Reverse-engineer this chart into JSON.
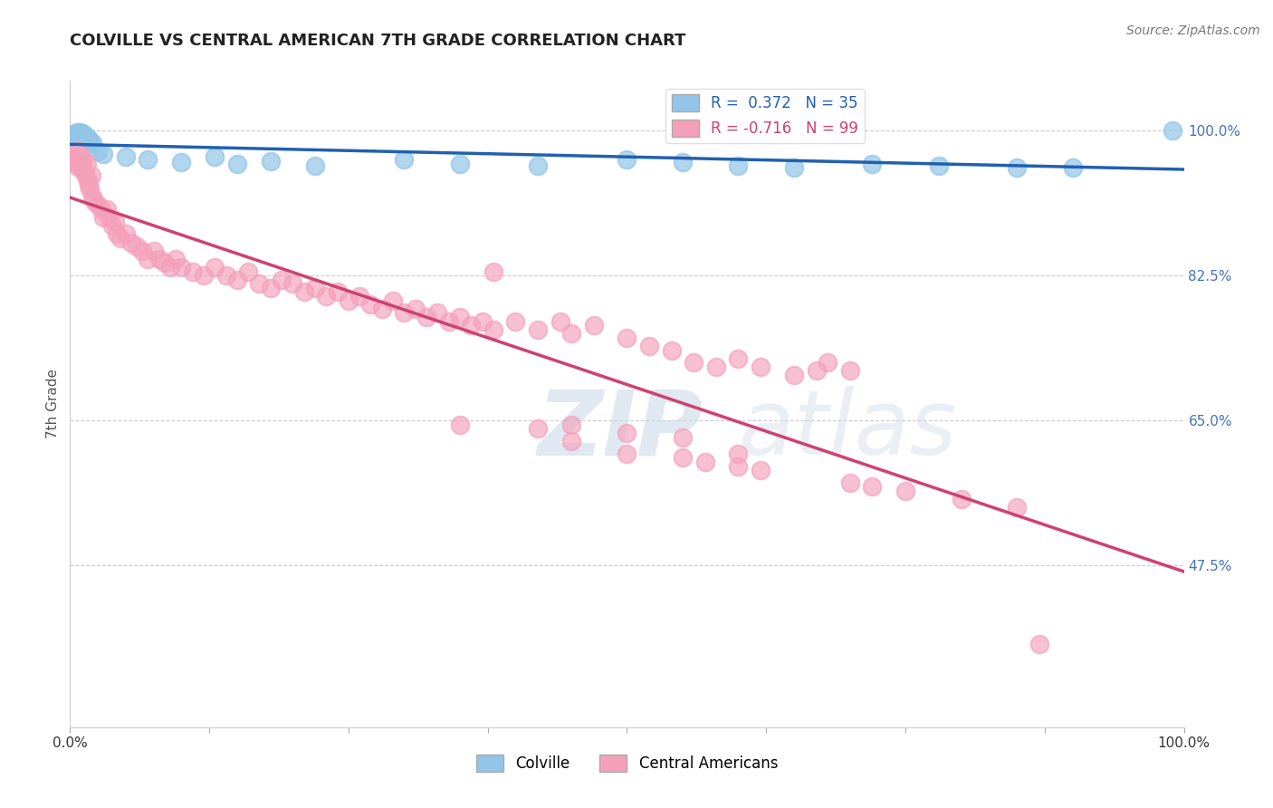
{
  "title": "COLVILLE VS CENTRAL AMERICAN 7TH GRADE CORRELATION CHART",
  "source": "Source: ZipAtlas.com",
  "ylabel": "7th Grade",
  "colville_R": 0.372,
  "colville_N": 35,
  "central_R": -0.716,
  "central_N": 99,
  "colville_color": "#92C5E8",
  "central_color": "#F4A0BB",
  "colville_line_color": "#2060B0",
  "central_line_color": "#D04070",
  "background_color": "#ffffff",
  "grid_color": "#cccccc",
  "watermark_color": "#d8e8f0",
  "ylim_low": 0.28,
  "ylim_high": 1.06,
  "y_ticks_right": [
    1.0,
    0.825,
    0.65,
    0.475
  ],
  "y_tick_labels_right": [
    "100.0%",
    "82.5%",
    "65.0%",
    "47.5%"
  ],
  "colville_points": [
    [
      0.003,
      0.993
    ],
    [
      0.005,
      0.997
    ],
    [
      0.006,
      0.995
    ],
    [
      0.007,
      0.998
    ],
    [
      0.008,
      0.996
    ],
    [
      0.009,
      0.998
    ],
    [
      0.01,
      0.994
    ],
    [
      0.011,
      0.997
    ],
    [
      0.012,
      0.993
    ],
    [
      0.013,
      0.995
    ],
    [
      0.015,
      0.992
    ],
    [
      0.016,
      0.99
    ],
    [
      0.018,
      0.988
    ],
    [
      0.02,
      0.985
    ],
    [
      0.025,
      0.975
    ],
    [
      0.03,
      0.972
    ],
    [
      0.05,
      0.968
    ],
    [
      0.07,
      0.965
    ],
    [
      0.1,
      0.962
    ],
    [
      0.13,
      0.968
    ],
    [
      0.15,
      0.96
    ],
    [
      0.18,
      0.963
    ],
    [
      0.22,
      0.958
    ],
    [
      0.3,
      0.965
    ],
    [
      0.35,
      0.96
    ],
    [
      0.42,
      0.958
    ],
    [
      0.5,
      0.965
    ],
    [
      0.55,
      0.962
    ],
    [
      0.6,
      0.958
    ],
    [
      0.65,
      0.955
    ],
    [
      0.72,
      0.96
    ],
    [
      0.78,
      0.958
    ],
    [
      0.85,
      0.955
    ],
    [
      0.9,
      0.955
    ],
    [
      0.99,
      1.0
    ]
  ],
  "central_points": [
    [
      0.003,
      0.97
    ],
    [
      0.005,
      0.965
    ],
    [
      0.006,
      0.96
    ],
    [
      0.007,
      0.975
    ],
    [
      0.008,
      0.955
    ],
    [
      0.009,
      0.97
    ],
    [
      0.01,
      0.96
    ],
    [
      0.011,
      0.955
    ],
    [
      0.012,
      0.965
    ],
    [
      0.013,
      0.95
    ],
    [
      0.014,
      0.945
    ],
    [
      0.015,
      0.96
    ],
    [
      0.016,
      0.94
    ],
    [
      0.017,
      0.935
    ],
    [
      0.018,
      0.93
    ],
    [
      0.019,
      0.945
    ],
    [
      0.02,
      0.92
    ],
    [
      0.022,
      0.915
    ],
    [
      0.025,
      0.91
    ],
    [
      0.028,
      0.905
    ],
    [
      0.03,
      0.895
    ],
    [
      0.033,
      0.905
    ],
    [
      0.035,
      0.895
    ],
    [
      0.038,
      0.885
    ],
    [
      0.04,
      0.89
    ],
    [
      0.042,
      0.875
    ],
    [
      0.045,
      0.87
    ],
    [
      0.05,
      0.875
    ],
    [
      0.055,
      0.865
    ],
    [
      0.06,
      0.86
    ],
    [
      0.065,
      0.855
    ],
    [
      0.07,
      0.845
    ],
    [
      0.075,
      0.855
    ],
    [
      0.08,
      0.845
    ],
    [
      0.085,
      0.84
    ],
    [
      0.09,
      0.835
    ],
    [
      0.095,
      0.845
    ],
    [
      0.1,
      0.835
    ],
    [
      0.11,
      0.83
    ],
    [
      0.12,
      0.825
    ],
    [
      0.13,
      0.835
    ],
    [
      0.14,
      0.825
    ],
    [
      0.15,
      0.82
    ],
    [
      0.16,
      0.83
    ],
    [
      0.17,
      0.815
    ],
    [
      0.18,
      0.81
    ],
    [
      0.19,
      0.82
    ],
    [
      0.2,
      0.815
    ],
    [
      0.21,
      0.805
    ],
    [
      0.22,
      0.81
    ],
    [
      0.23,
      0.8
    ],
    [
      0.24,
      0.805
    ],
    [
      0.25,
      0.795
    ],
    [
      0.26,
      0.8
    ],
    [
      0.27,
      0.79
    ],
    [
      0.28,
      0.785
    ],
    [
      0.29,
      0.795
    ],
    [
      0.3,
      0.78
    ],
    [
      0.31,
      0.785
    ],
    [
      0.32,
      0.775
    ],
    [
      0.33,
      0.78
    ],
    [
      0.34,
      0.77
    ],
    [
      0.35,
      0.775
    ],
    [
      0.36,
      0.765
    ],
    [
      0.37,
      0.77
    ],
    [
      0.38,
      0.76
    ],
    [
      0.4,
      0.77
    ],
    [
      0.42,
      0.76
    ],
    [
      0.44,
      0.77
    ],
    [
      0.45,
      0.755
    ],
    [
      0.47,
      0.765
    ],
    [
      0.5,
      0.75
    ],
    [
      0.52,
      0.74
    ],
    [
      0.54,
      0.735
    ],
    [
      0.56,
      0.72
    ],
    [
      0.58,
      0.715
    ],
    [
      0.6,
      0.725
    ],
    [
      0.62,
      0.715
    ],
    [
      0.65,
      0.705
    ],
    [
      0.67,
      0.71
    ],
    [
      0.68,
      0.72
    ],
    [
      0.7,
      0.71
    ],
    [
      0.38,
      0.83
    ],
    [
      0.35,
      0.645
    ],
    [
      0.5,
      0.635
    ],
    [
      0.5,
      0.61
    ],
    [
      0.55,
      0.605
    ],
    [
      0.6,
      0.595
    ],
    [
      0.45,
      0.645
    ],
    [
      0.55,
      0.63
    ],
    [
      0.45,
      0.625
    ],
    [
      0.42,
      0.64
    ],
    [
      0.62,
      0.59
    ],
    [
      0.6,
      0.61
    ],
    [
      0.57,
      0.6
    ],
    [
      0.7,
      0.575
    ],
    [
      0.72,
      0.57
    ],
    [
      0.75,
      0.565
    ],
    [
      0.8,
      0.555
    ],
    [
      0.85,
      0.545
    ],
    [
      0.87,
      0.38
    ]
  ]
}
